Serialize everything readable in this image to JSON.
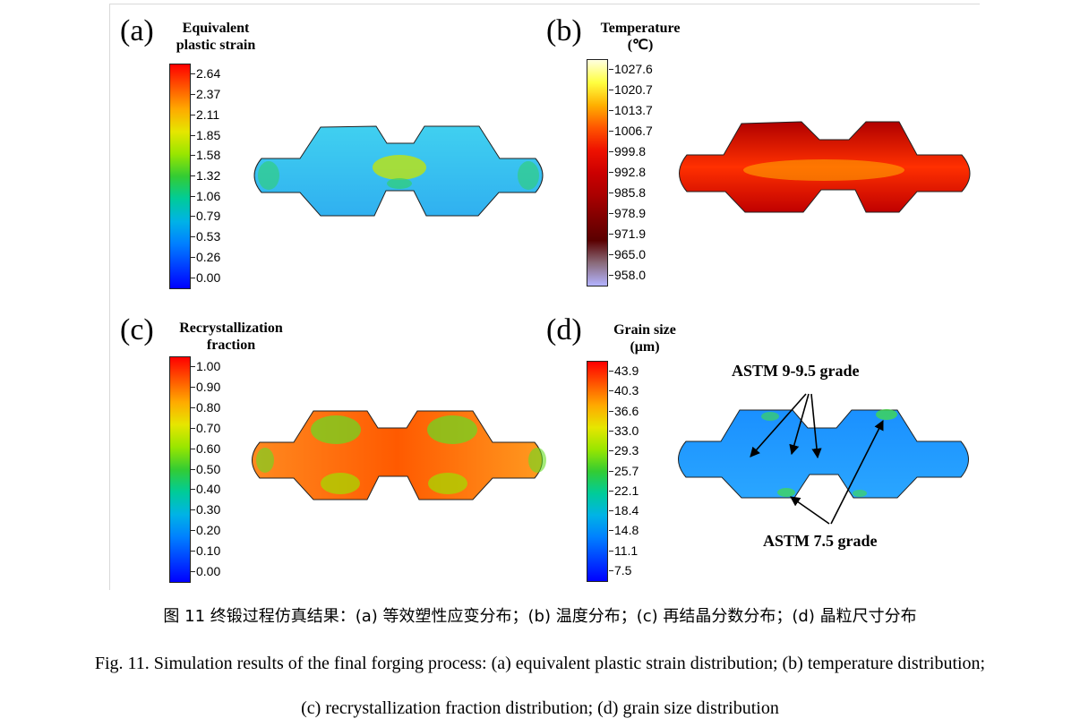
{
  "panels": {
    "a": {
      "letter": "(a)",
      "title": "Equivalent\nplastic strain",
      "ticks": [
        "2.64",
        "2.37",
        "2.11",
        "1.85",
        "1.58",
        "1.32",
        "1.06",
        "0.79",
        "0.53",
        "0.26",
        "0.00"
      ],
      "colormap": [
        "#ff0000",
        "#ff5500",
        "#ffaa00",
        "#e6e600",
        "#99e600",
        "#33cc33",
        "#00cc99",
        "#00b3e6",
        "#0080ff",
        "#0040ff",
        "#0000ff"
      ]
    },
    "b": {
      "letter": "(b)",
      "title": "Temperature\n(℃)",
      "ticks": [
        "1027.6",
        "1020.7",
        "1013.7",
        "1006.7",
        "999.8",
        "992.8",
        "985.8",
        "978.9",
        "971.9",
        "965.0",
        "958.0"
      ],
      "colormap": [
        "#ffffe0",
        "#ffff40",
        "#ffb000",
        "#ff5500",
        "#ee1100",
        "#cc0000",
        "#aa0000",
        "#800000",
        "#5a0000",
        "#8a6b7a",
        "#b3b3ff"
      ]
    },
    "c": {
      "letter": "(c)",
      "title": "Recrystallization\nfraction",
      "ticks": [
        "1.00",
        "0.90",
        "0.80",
        "0.70",
        "0.60",
        "0.50",
        "0.40",
        "0.30",
        "0.20",
        "0.10",
        "0.00"
      ],
      "colormap": [
        "#ff0000",
        "#ff5500",
        "#ffaa00",
        "#e6e600",
        "#99e600",
        "#33cc33",
        "#00cc99",
        "#00b3e6",
        "#0080ff",
        "#0040ff",
        "#0000ff"
      ]
    },
    "d": {
      "letter": "(d)",
      "title": "Grain size\n(μm)",
      "ticks": [
        "43.9",
        "40.3",
        "36.6",
        "33.0",
        "29.3",
        "25.7",
        "22.1",
        "18.4",
        "14.8",
        "11.1",
        "7.5"
      ],
      "colormap": [
        "#ff0000",
        "#ff5500",
        "#ffaa00",
        "#e6e600",
        "#99e600",
        "#33cc33",
        "#00cc99",
        "#00b3e6",
        "#0080ff",
        "#0040ff",
        "#0000ff"
      ],
      "annotation_top": "ASTM 9-9.5 grade",
      "annotation_bottom": "ASTM 7.5 grade"
    }
  },
  "caption": {
    "cn": "图 11  终锻过程仿真结果：(a) 等效塑性应变分布；(b) 温度分布；(c) 再结晶分数分布；(d) 晶粒尺寸分布",
    "en_line1": "Fig. 11. Simulation results of the final forging process: (a) equivalent plastic strain distribution; (b) temperature distribution;",
    "en_line2": "(c) recrystallization fraction distribution; (d) grain size distribution"
  }
}
